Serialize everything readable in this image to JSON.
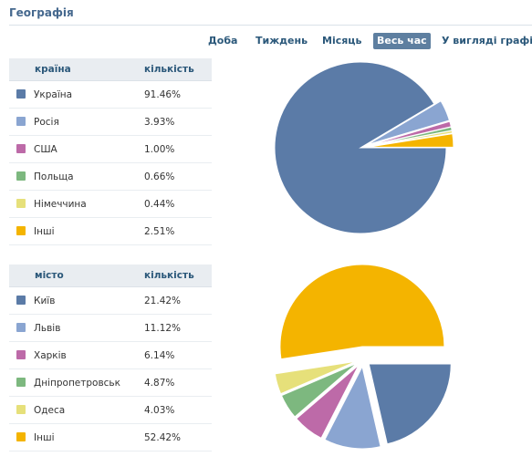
{
  "header": {
    "title": "Географія"
  },
  "periods": [
    {
      "label": "Доба",
      "active": false
    },
    {
      "label": "Тиждень",
      "active": false
    },
    {
      "label": "Місяць",
      "active": false
    },
    {
      "label": "Весь час",
      "active": true
    },
    {
      "label": "У вигляді графік",
      "active": false
    }
  ],
  "countries": {
    "col_name": "країна",
    "col_value": "кількість",
    "rows": [
      {
        "name": "Україна",
        "value": "91.46%",
        "color": "#5b7ba7"
      },
      {
        "name": "Росія",
        "value": "3.93%",
        "color": "#8aa5d1"
      },
      {
        "name": "США",
        "value": "1.00%",
        "color": "#bd6aa8"
      },
      {
        "name": "Польща",
        "value": "0.66%",
        "color": "#7db87f"
      },
      {
        "name": "Німеччина",
        "value": "0.44%",
        "color": "#e6e07a"
      },
      {
        "name": "Інші",
        "value": "2.51%",
        "color": "#f4b400"
      }
    ]
  },
  "cities": {
    "col_name": "місто",
    "col_value": "кількість",
    "rows": [
      {
        "name": "Київ",
        "value": "21.42%",
        "color": "#5b7ba7"
      },
      {
        "name": "Львів",
        "value": "11.12%",
        "color": "#8aa5d1"
      },
      {
        "name": "Харків",
        "value": "6.14%",
        "color": "#bd6aa8"
      },
      {
        "name": "Дніпропетровськ",
        "value": "4.87%",
        "color": "#7db87f"
      },
      {
        "name": "Одеса",
        "value": "4.03%",
        "color": "#e6e07a"
      },
      {
        "name": "Інші",
        "value": "52.42%",
        "color": "#f4b400"
      }
    ]
  },
  "chart_data": [
    {
      "type": "pie",
      "categories": [
        "Україна",
        "Росія",
        "США",
        "Польща",
        "Німеччина",
        "Інші"
      ],
      "values": [
        91.46,
        3.93,
        1.0,
        0.66,
        0.44,
        2.51
      ],
      "colors": [
        "#5b7ba7",
        "#8aa5d1",
        "#bd6aa8",
        "#7db87f",
        "#e6e07a",
        "#f4b400"
      ]
    },
    {
      "type": "pie",
      "categories": [
        "Київ",
        "Львів",
        "Харків",
        "Дніпропетровськ",
        "Одеса",
        "Інші"
      ],
      "values": [
        21.42,
        11.12,
        6.14,
        4.87,
        4.03,
        52.42
      ],
      "colors": [
        "#5b7ba7",
        "#8aa5d1",
        "#bd6aa8",
        "#7db87f",
        "#e6e07a",
        "#f4b400"
      ]
    }
  ]
}
